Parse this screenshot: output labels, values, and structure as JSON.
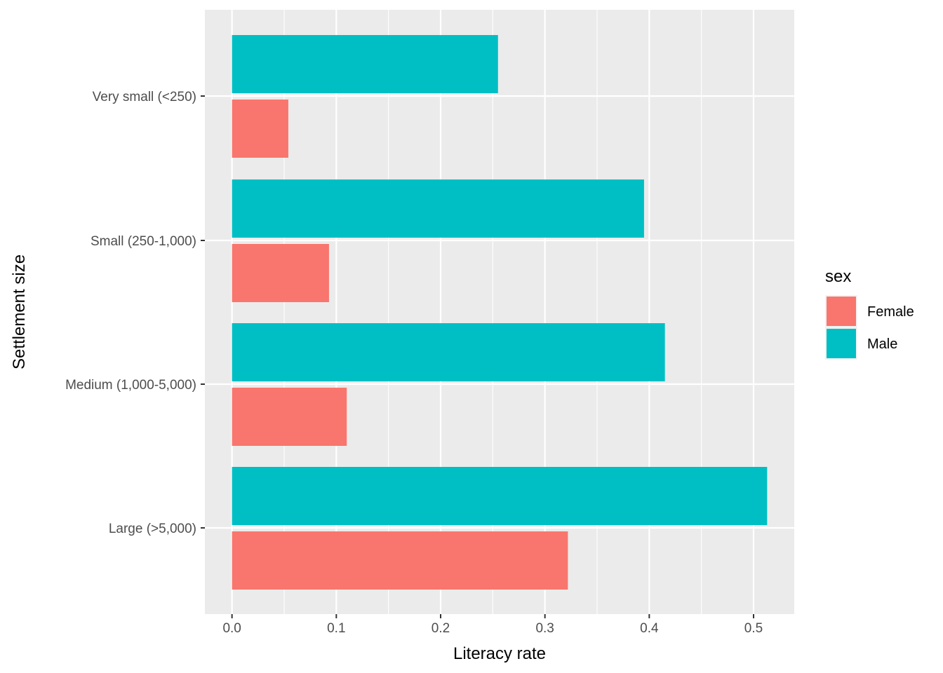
{
  "chart_data": {
    "type": "bar",
    "orientation": "horizontal",
    "title": "",
    "xlabel": "Literacy rate",
    "ylabel": "Settlement size",
    "categories": [
      "Very small (<250)",
      "Small (250-1,000)",
      "Medium (1,000-5,000)",
      "Large (>5,000)"
    ],
    "series": [
      {
        "name": "Female",
        "color": "#F8766D",
        "values": [
          0.054,
          0.093,
          0.11,
          0.322
        ]
      },
      {
        "name": "Male",
        "color": "#00BFC4",
        "values": [
          0.255,
          0.395,
          0.415,
          0.513
        ]
      }
    ],
    "xlim": [
      -0.026,
      0.539
    ],
    "xticks": [
      0.0,
      0.1,
      0.2,
      0.3,
      0.4,
      0.5
    ],
    "xtick_labels": [
      "0.0",
      "0.1",
      "0.2",
      "0.3",
      "0.4",
      "0.5"
    ],
    "grid": true,
    "legend": {
      "title": "sex",
      "position": "right",
      "entries": [
        "Female",
        "Male"
      ]
    }
  }
}
